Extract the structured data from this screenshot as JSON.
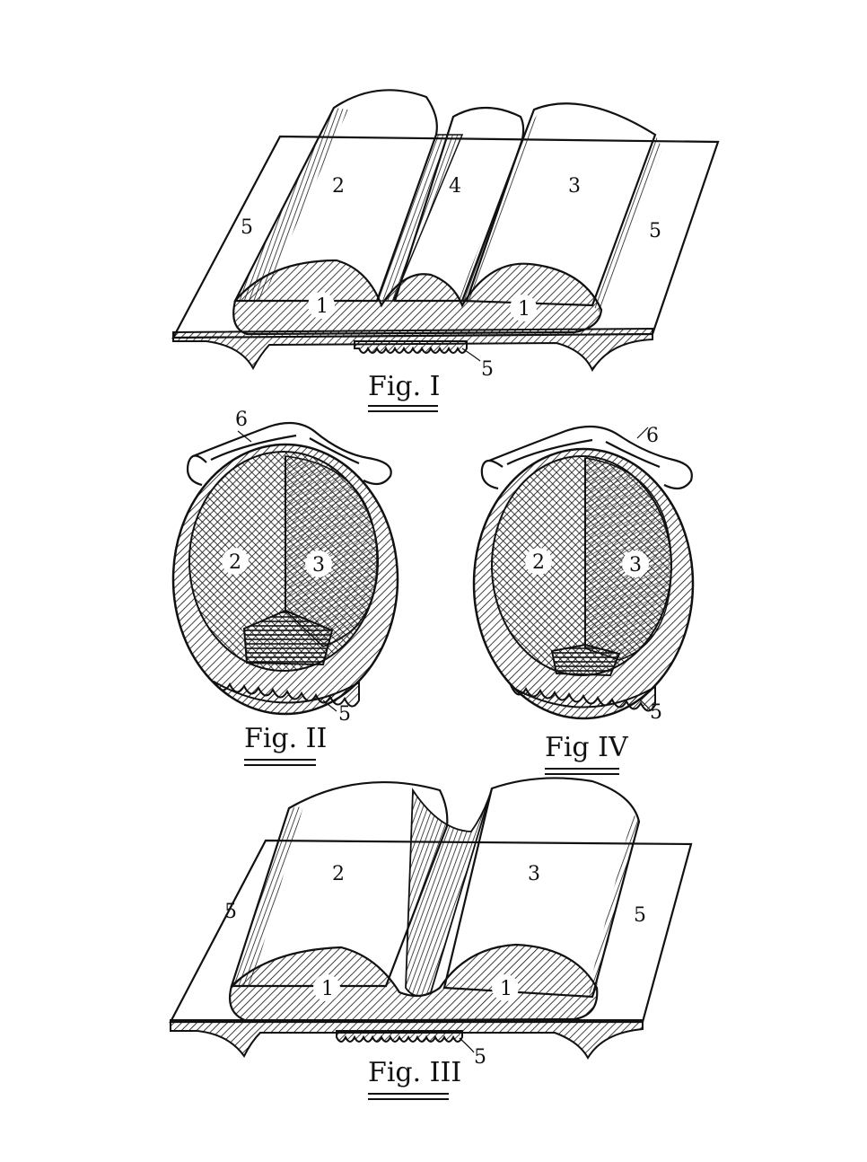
{
  "figures": {
    "fig1": {
      "caption": "Fig. I",
      "labels": {
        "left_mass": "1",
        "right_mass": "1",
        "left_lobe": "2",
        "right_lobe": "3",
        "center_lobe": "4",
        "left_flap": "5",
        "right_flap": "5",
        "tread": "5"
      }
    },
    "fig2": {
      "caption": "Fig. II",
      "labels": {
        "left_half": "2",
        "right_half": "3",
        "casing": "5",
        "tube": "6"
      }
    },
    "fig4": {
      "caption": "Fig IV",
      "labels": {
        "left_half": "2",
        "right_half": "3",
        "casing": "5",
        "tube": "6"
      }
    },
    "fig3": {
      "caption": "Fig. III",
      "labels": {
        "left_mass": "1",
        "right_mass": "1",
        "left_lobe": "2",
        "right_lobe": "3",
        "left_flap": "5",
        "right_flap": "5",
        "tread": "5"
      }
    }
  }
}
